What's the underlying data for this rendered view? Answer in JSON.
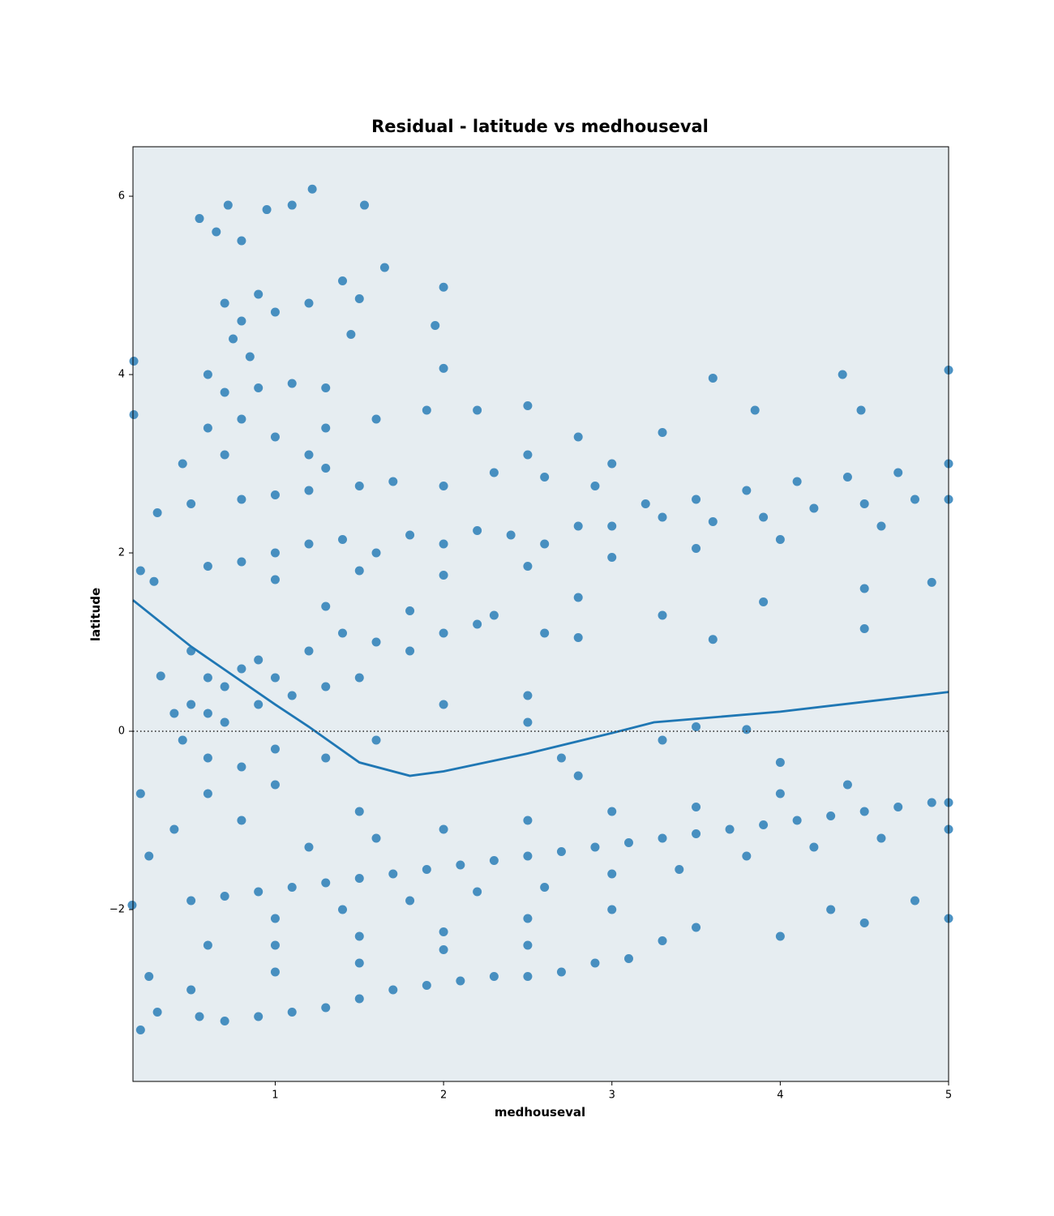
{
  "chart_data": {
    "type": "scatter",
    "title": "Residual - latitude vs medhouseval",
    "x_label": "medhouseval",
    "y_label": "latitude",
    "xlim": [
      0.155,
      5.0
    ],
    "ylim": [
      -3.927,
      6.555
    ],
    "xticks": [
      1,
      2,
      3,
      4,
      5
    ],
    "yticks": [
      {
        "value": -2,
        "label": "−2"
      },
      0,
      2,
      4,
      6
    ],
    "background": "#e6edf1",
    "reference_line": {
      "y": 0,
      "style": "dotted",
      "color": "#333333"
    },
    "series": [
      {
        "type": "scatter",
        "color": "#1f77b4",
        "x": [
          0.55,
          0.65,
          0.72,
          0.8,
          0.95,
          1.1,
          1.22,
          1.53,
          0.7,
          0.8,
          0.9,
          0.75,
          0.85,
          1.0,
          1.2,
          1.4,
          1.5,
          1.65,
          0.6,
          0.7,
          0.9,
          1.1,
          1.3,
          1.45,
          2.0,
          1.95,
          0.6,
          0.8,
          1.0,
          1.3,
          1.6,
          1.9,
          2.2,
          2.5,
          2.8,
          3.3,
          3.6,
          3.85,
          4.37,
          4.48,
          0.45,
          0.7,
          1.2,
          2.0,
          5.0,
          0.16,
          0.16,
          0.5,
          0.8,
          1.0,
          1.2,
          1.5,
          1.7,
          2.0,
          2.3,
          2.6,
          2.9,
          3.2,
          3.5,
          3.8,
          4.1,
          4.4,
          4.7,
          5.0,
          1.3,
          2.5,
          3.0,
          0.6,
          0.8,
          1.0,
          1.2,
          1.4,
          1.6,
          1.8,
          2.0,
          2.2,
          2.4,
          2.6,
          2.8,
          3.0,
          3.3,
          3.6,
          3.9,
          4.2,
          4.5,
          4.8,
          5.0,
          1.0,
          1.5,
          2.0,
          2.5,
          3.0,
          3.5,
          4.0,
          4.6,
          1.3,
          1.8,
          2.3,
          2.8,
          3.3,
          3.9,
          4.5,
          4.9,
          4.5,
          3.6,
          0.5,
          0.6,
          0.7,
          0.8,
          0.9,
          1.0,
          1.2,
          1.4,
          1.6,
          1.8,
          2.0,
          2.2,
          2.6,
          2.8,
          0.5,
          0.6,
          0.7,
          0.9,
          1.1,
          1.3,
          1.5,
          0.4,
          0.45,
          0.6,
          0.8,
          1.0,
          1.3,
          1.6,
          2.0,
          2.5,
          2.5,
          2.7,
          3.3,
          3.5,
          3.8,
          0.2,
          0.3,
          0.28,
          0.32,
          0.5,
          0.7,
          0.9,
          1.1,
          1.3,
          1.5,
          1.7,
          1.9,
          2.1,
          2.3,
          2.5,
          2.7,
          2.9,
          3.1,
          3.3,
          3.5,
          3.7,
          3.9,
          4.1,
          4.3,
          4.5,
          4.7,
          4.9,
          5.0,
          1.0,
          1.4,
          1.8,
          2.2,
          2.6,
          3.0,
          3.4,
          3.8,
          4.2,
          4.6,
          5.0,
          1.2,
          1.6,
          2.0,
          2.5,
          3.0,
          3.5,
          4.0,
          4.4,
          0.6,
          0.8,
          1.0,
          1.5,
          2.8,
          4.0,
          0.6,
          1.0,
          1.5,
          2.0,
          2.5,
          3.0,
          3.5,
          4.0,
          4.5,
          4.8,
          5.0,
          3.3,
          4.3,
          0.55,
          0.7,
          0.9,
          1.1,
          1.3,
          1.5,
          1.7,
          1.9,
          2.1,
          2.3,
          2.5,
          2.7,
          2.9,
          3.1,
          1.0,
          1.5,
          2.0,
          2.5,
          0.5,
          0.2,
          0.3,
          0.25,
          0.2,
          0.15,
          0.25,
          0.4
        ],
        "values": [
          5.75,
          5.6,
          5.9,
          5.5,
          5.85,
          5.9,
          6.08,
          5.9,
          4.8,
          4.6,
          4.9,
          4.4,
          4.2,
          4.7,
          4.8,
          5.05,
          4.85,
          5.2,
          4.0,
          3.8,
          3.85,
          3.9,
          3.85,
          4.45,
          4.98,
          4.55,
          3.4,
          3.5,
          3.3,
          3.4,
          3.5,
          3.6,
          3.6,
          3.65,
          3.3,
          3.35,
          3.96,
          3.6,
          4.0,
          3.6,
          3.0,
          3.1,
          3.1,
          4.07,
          4.05,
          4.15,
          3.55,
          2.55,
          2.6,
          2.65,
          2.7,
          2.75,
          2.8,
          2.75,
          2.9,
          2.85,
          2.75,
          2.55,
          2.6,
          2.7,
          2.8,
          2.85,
          2.9,
          3.0,
          2.95,
          3.1,
          3.0,
          1.85,
          1.9,
          2.0,
          2.1,
          2.15,
          2.0,
          2.2,
          2.1,
          2.25,
          2.2,
          2.1,
          2.3,
          2.3,
          2.4,
          2.35,
          2.4,
          2.5,
          2.55,
          2.6,
          2.6,
          1.7,
          1.8,
          1.75,
          1.85,
          1.95,
          2.05,
          2.15,
          2.3,
          1.4,
          1.35,
          1.3,
          1.5,
          1.3,
          1.45,
          1.6,
          1.67,
          1.15,
          1.03,
          0.9,
          0.6,
          0.5,
          0.7,
          0.8,
          0.6,
          0.9,
          1.1,
          1.0,
          0.9,
          1.1,
          1.2,
          1.1,
          1.05,
          0.3,
          0.2,
          0.1,
          0.3,
          0.4,
          0.5,
          0.6,
          0.2,
          -0.1,
          -0.3,
          -0.4,
          -0.2,
          -0.3,
          -0.1,
          0.3,
          0.4,
          0.1,
          -0.3,
          -0.1,
          0.05,
          0.02,
          1.8,
          2.45,
          1.68,
          0.62,
          -1.9,
          -1.85,
          -1.8,
          -1.75,
          -1.7,
          -1.65,
          -1.6,
          -1.55,
          -1.5,
          -1.45,
          -1.4,
          -1.35,
          -1.3,
          -1.25,
          -1.2,
          -1.15,
          -1.1,
          -1.05,
          -1.0,
          -0.95,
          -0.9,
          -0.85,
          -0.8,
          -0.8,
          -2.1,
          -2.0,
          -1.9,
          -1.8,
          -1.75,
          -1.6,
          -1.55,
          -1.4,
          -1.3,
          -1.2,
          -1.1,
          -1.3,
          -1.2,
          -1.1,
          -1.0,
          -0.9,
          -0.85,
          -0.7,
          -0.6,
          -0.7,
          -1.0,
          -0.6,
          -0.9,
          -0.5,
          -0.35,
          -2.4,
          -2.4,
          -2.3,
          -2.25,
          -2.1,
          -2.0,
          -2.2,
          -2.3,
          -2.15,
          -1.9,
          -2.1,
          -2.35,
          -2.0,
          -3.2,
          -3.25,
          -3.2,
          -3.15,
          -3.1,
          -3.0,
          -2.9,
          -2.85,
          -2.8,
          -2.75,
          -2.75,
          -2.7,
          -2.6,
          -2.55,
          -2.7,
          -2.6,
          -2.45,
          -2.4,
          -2.9,
          -3.35,
          -3.15,
          -2.75,
          -0.7,
          -1.95,
          -1.4,
          -1.1
        ]
      },
      {
        "type": "line",
        "color": "#1f77b4",
        "x": [
          0.155,
          0.5,
          1.0,
          1.2,
          1.5,
          1.8,
          2.0,
          2.5,
          3.0,
          3.25,
          4.0,
          5.0
        ],
        "values": [
          1.47,
          0.95,
          0.3,
          0.05,
          -0.35,
          -0.5,
          -0.45,
          -0.25,
          -0.02,
          0.1,
          0.22,
          0.44
        ]
      }
    ]
  }
}
